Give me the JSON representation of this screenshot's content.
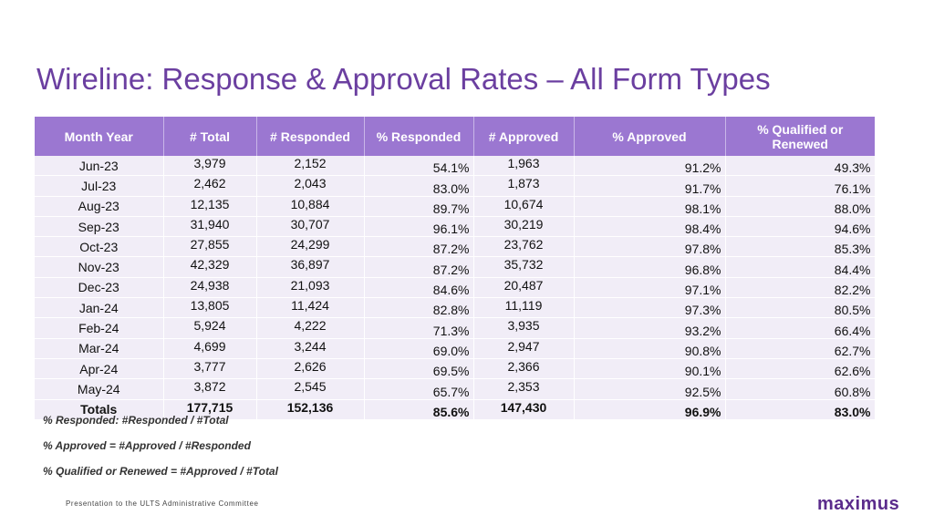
{
  "title": "Wireline: Response & Approval Rates – All Form Types",
  "table": {
    "headers": [
      "Month Year",
      "# Total",
      "# Responded",
      "% Responded",
      "# Approved",
      "% Approved",
      "% Qualified or Renewed"
    ],
    "rows": [
      [
        "Jun-23",
        "3,979",
        "2,152",
        "54.1%",
        "1,963",
        "91.2%",
        "49.3%"
      ],
      [
        "Jul-23",
        "2,462",
        "2,043",
        "83.0%",
        "1,873",
        "91.7%",
        "76.1%"
      ],
      [
        "Aug-23",
        "12,135",
        "10,884",
        "89.7%",
        "10,674",
        "98.1%",
        "88.0%"
      ],
      [
        "Sep-23",
        "31,940",
        "30,707",
        "96.1%",
        "30,219",
        "98.4%",
        "94.6%"
      ],
      [
        "Oct-23",
        "27,855",
        "24,299",
        "87.2%",
        "23,762",
        "97.8%",
        "85.3%"
      ],
      [
        "Nov-23",
        "42,329",
        "36,897",
        "87.2%",
        "35,732",
        "96.8%",
        "84.4%"
      ],
      [
        "Dec-23",
        "24,938",
        "21,093",
        "84.6%",
        "20,487",
        "97.1%",
        "82.2%"
      ],
      [
        "Jan-24",
        "13,805",
        "11,424",
        "82.8%",
        "11,119",
        "97.3%",
        "80.5%"
      ],
      [
        "Feb-24",
        "5,924",
        "4,222",
        "71.3%",
        "3,935",
        "93.2%",
        "66.4%"
      ],
      [
        "Mar-24",
        "4,699",
        "3,244",
        "69.0%",
        "2,947",
        "90.8%",
        "62.7%"
      ],
      [
        "Apr-24",
        "3,777",
        "2,626",
        "69.5%",
        "2,366",
        "90.1%",
        "62.6%"
      ],
      [
        "May-24",
        "3,872",
        "2,545",
        "65.7%",
        "2,353",
        "92.5%",
        "60.8%"
      ]
    ],
    "totals": [
      "Totals",
      "177,715",
      "152,136",
      "85.6%",
      "147,430",
      "96.9%",
      "83.0%"
    ]
  },
  "notes": [
    "% Responded: #Responded / #Total",
    "% Approved = #Approved / #Responded",
    "% Qualified or Renewed = #Approved / #Total"
  ],
  "footer": "Presentation to the ULTS Administrative Committee",
  "logo_text": "maximus",
  "colors": {
    "title": "#6b3fa0",
    "header_bg": "#9b77d1",
    "row_bg": "#f1edf7",
    "logo": "#5b2c8c"
  }
}
